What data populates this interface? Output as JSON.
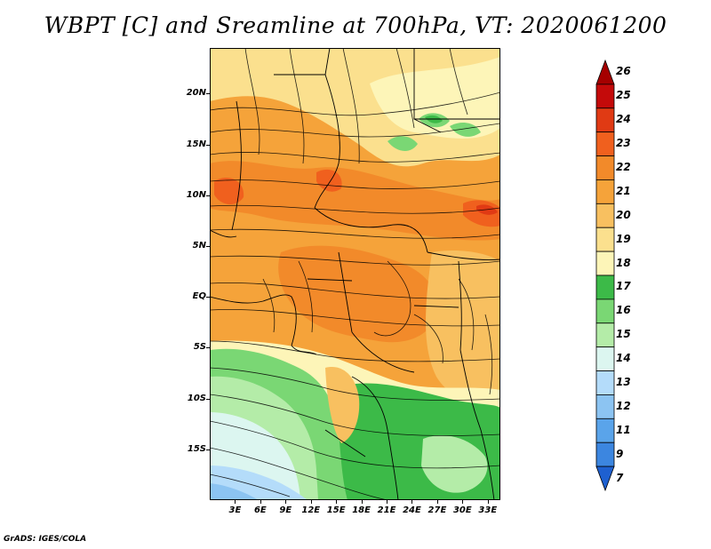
{
  "title": "WBPT [C] and Sreamline at 700hPa, VT: 2020061200",
  "footer": "GrADS: IGES/COLA",
  "axes": {
    "lat_labels": [
      {
        "text": "20N",
        "lat": 20
      },
      {
        "text": "15N",
        "lat": 15
      },
      {
        "text": "10N",
        "lat": 10
      },
      {
        "text": "5N",
        "lat": 5
      },
      {
        "text": "EQ",
        "lat": 0
      },
      {
        "text": "5S",
        "lat": -5
      },
      {
        "text": "10S",
        "lat": -10
      },
      {
        "text": "15S",
        "lat": -15
      }
    ],
    "lon_labels": [
      {
        "text": "3E",
        "lon": 3
      },
      {
        "text": "6E",
        "lon": 6
      },
      {
        "text": "9E",
        "lon": 9
      },
      {
        "text": "12E",
        "lon": 12
      },
      {
        "text": "15E",
        "lon": 15
      },
      {
        "text": "18E",
        "lon": 18
      },
      {
        "text": "21E",
        "lon": 21
      },
      {
        "text": "24E",
        "lon": 24
      },
      {
        "text": "27E",
        "lon": 27
      },
      {
        "text": "30E",
        "lon": 30
      },
      {
        "text": "33E",
        "lon": 33
      }
    ],
    "lat_range": [
      -20,
      24.5
    ],
    "lon_range": [
      0,
      34.5
    ]
  },
  "colorbar": {
    "levels": [
      {
        "label": "26",
        "color": "#a50000"
      },
      {
        "label": "25",
        "color": "#c40a0a"
      },
      {
        "label": "24",
        "color": "#e03a14"
      },
      {
        "label": "23",
        "color": "#f0601e"
      },
      {
        "label": "22",
        "color": "#f28a2a"
      },
      {
        "label": "21",
        "color": "#f5a33a"
      },
      {
        "label": "20",
        "color": "#f8c060"
      },
      {
        "label": "19",
        "color": "#fbe08e"
      },
      {
        "label": "18",
        "color": "#fdf5b8"
      },
      {
        "label": "17",
        "color": "#3cba48"
      },
      {
        "label": "16",
        "color": "#7ad774"
      },
      {
        "label": "15",
        "color": "#b4eca8"
      },
      {
        "label": "14",
        "color": "#dcf6f0"
      },
      {
        "label": "13",
        "color": "#b4dcfa"
      },
      {
        "label": "12",
        "color": "#8cc4f2"
      },
      {
        "label": "11",
        "color": "#5aa4ea"
      },
      {
        "label": "9",
        "color": "#3c86e0"
      },
      {
        "label": "7",
        "color": "#1e60d0"
      }
    ]
  }
}
